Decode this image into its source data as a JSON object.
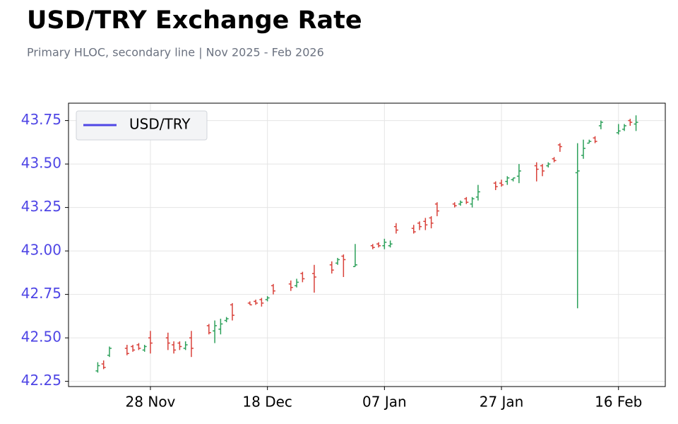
{
  "chart_data": {
    "type": "ohlc",
    "title": "USD/TRY Exchange Rate",
    "subtitle": "Primary HLOC, secondary line | Nov 2025 - Feb 2026",
    "x": [
      "2025-11-19",
      "2025-11-20",
      "2025-11-21",
      "2025-11-24",
      "2025-11-25",
      "2025-11-26",
      "2025-11-27",
      "2025-11-28",
      "2025-12-01",
      "2025-12-02",
      "2025-12-03",
      "2025-12-04",
      "2025-12-05",
      "2025-12-08",
      "2025-12-09",
      "2025-12-10",
      "2025-12-11",
      "2025-12-12",
      "2025-12-15",
      "2025-12-16",
      "2025-12-17",
      "2025-12-18",
      "2025-12-19",
      "2025-12-22",
      "2025-12-23",
      "2025-12-24",
      "2025-12-26",
      "2025-12-29",
      "2025-12-30",
      "2025-12-31",
      "2026-01-02",
      "2026-01-05",
      "2026-01-06",
      "2026-01-07",
      "2026-01-08",
      "2026-01-09",
      "2026-01-12",
      "2026-01-13",
      "2026-01-14",
      "2026-01-15",
      "2026-01-16",
      "2026-01-19",
      "2026-01-20",
      "2026-01-21",
      "2026-01-22",
      "2026-01-23",
      "2026-01-26",
      "2026-01-27",
      "2026-01-28",
      "2026-01-29",
      "2026-01-30",
      "2026-02-02",
      "2026-02-03",
      "2026-02-04",
      "2026-02-05",
      "2026-02-06",
      "2026-02-09",
      "2026-02-10",
      "2026-02-11",
      "2026-02-12",
      "2026-02-13",
      "2026-02-16",
      "2026-02-17",
      "2026-02-18",
      "2026-02-19"
    ],
    "series": [
      {
        "name": "USD/TRY",
        "color": "#4f46e5",
        "open": [
          42.31,
          42.35,
          42.4,
          42.44,
          42.45,
          42.46,
          42.43,
          42.5,
          42.5,
          42.46,
          42.47,
          42.44,
          42.5,
          42.57,
          42.54,
          42.55,
          42.6,
          42.69,
          42.7,
          42.71,
          42.72,
          42.72,
          42.8,
          42.81,
          42.8,
          42.87,
          42.87,
          42.92,
          42.93,
          42.97,
          42.91,
          43.03,
          43.04,
          43.03,
          43.03,
          43.14,
          43.13,
          43.16,
          43.17,
          43.19,
          43.27,
          43.27,
          43.27,
          43.3,
          43.27,
          43.31,
          43.39,
          43.39,
          43.4,
          43.41,
          43.43,
          43.49,
          43.49,
          43.49,
          43.53,
          43.61,
          43.45,
          43.55,
          43.62,
          43.65,
          43.72,
          43.68,
          43.7,
          43.75,
          43.73
        ],
        "high": [
          42.36,
          42.37,
          42.45,
          42.46,
          42.46,
          42.47,
          42.46,
          42.54,
          42.53,
          42.48,
          42.48,
          42.48,
          42.54,
          42.58,
          42.6,
          42.61,
          42.62,
          42.7,
          42.71,
          42.72,
          42.73,
          42.74,
          42.81,
          42.83,
          42.84,
          42.88,
          42.92,
          42.94,
          42.96,
          42.98,
          43.04,
          43.04,
          43.05,
          43.07,
          43.06,
          43.16,
          43.15,
          43.17,
          43.19,
          43.2,
          43.28,
          43.28,
          43.29,
          43.31,
          43.31,
          43.38,
          43.4,
          43.41,
          43.43,
          43.42,
          43.5,
          43.51,
          43.5,
          43.51,
          43.54,
          43.62,
          43.62,
          43.64,
          43.64,
          43.66,
          43.75,
          43.73,
          43.73,
          43.76,
          43.78
        ],
        "low": [
          42.3,
          42.32,
          42.39,
          42.4,
          42.42,
          42.43,
          42.42,
          42.41,
          42.43,
          42.41,
          42.43,
          42.43,
          42.39,
          42.52,
          42.47,
          42.52,
          42.59,
          42.6,
          42.69,
          42.69,
          42.68,
          42.71,
          42.75,
          42.77,
          42.79,
          42.82,
          42.76,
          42.87,
          42.92,
          42.85,
          42.91,
          43.01,
          43.02,
          43.01,
          43.02,
          43.1,
          43.1,
          43.12,
          43.12,
          43.13,
          43.2,
          43.25,
          43.26,
          43.27,
          43.25,
          43.29,
          43.35,
          43.37,
          43.38,
          43.4,
          43.39,
          43.4,
          43.43,
          43.48,
          43.51,
          43.57,
          42.67,
          43.53,
          43.62,
          43.62,
          43.7,
          43.67,
          43.69,
          43.72,
          43.69
        ],
        "close": [
          42.34,
          42.33,
          42.44,
          42.41,
          42.43,
          42.44,
          42.45,
          42.47,
          42.47,
          42.43,
          42.45,
          42.46,
          42.44,
          42.53,
          42.57,
          42.58,
          42.61,
          42.63,
          42.69,
          42.7,
          42.7,
          42.73,
          42.77,
          42.79,
          42.82,
          42.84,
          42.85,
          42.89,
          42.95,
          42.95,
          42.92,
          43.02,
          43.03,
          43.05,
          43.04,
          43.12,
          43.11,
          43.14,
          43.15,
          43.16,
          43.23,
          43.26,
          43.28,
          43.28,
          43.3,
          43.34,
          43.37,
          43.38,
          43.42,
          43.42,
          43.46,
          43.47,
          43.46,
          43.5,
          43.52,
          43.6,
          43.46,
          43.59,
          43.63,
          43.63,
          43.74,
          43.69,
          43.72,
          43.74,
          43.74
        ]
      }
    ],
    "up_color": "#2ca05a",
    "down_color": "#d9413a",
    "xlim": [
      "2025-11-14",
      "2026-02-24"
    ],
    "xticks": [
      {
        "value": "2025-11-28",
        "label": "28 Nov"
      },
      {
        "value": "2025-12-18",
        "label": "18 Dec"
      },
      {
        "value": "2026-01-07",
        "label": "07 Jan"
      },
      {
        "value": "2026-01-27",
        "label": "27 Jan"
      },
      {
        "value": "2026-02-16",
        "label": "16 Feb"
      }
    ],
    "ylim": [
      42.22,
      43.85
    ],
    "yticks": [
      42.25,
      {
        "value": 42.5,
        "label": "42.50"
      },
      42.75,
      {
        "value": 43,
        "label": "43.00"
      },
      43.25,
      {
        "value": 43.5,
        "label": "43.50"
      },
      43.75
    ],
    "grid": true,
    "legend": "upper left"
  }
}
